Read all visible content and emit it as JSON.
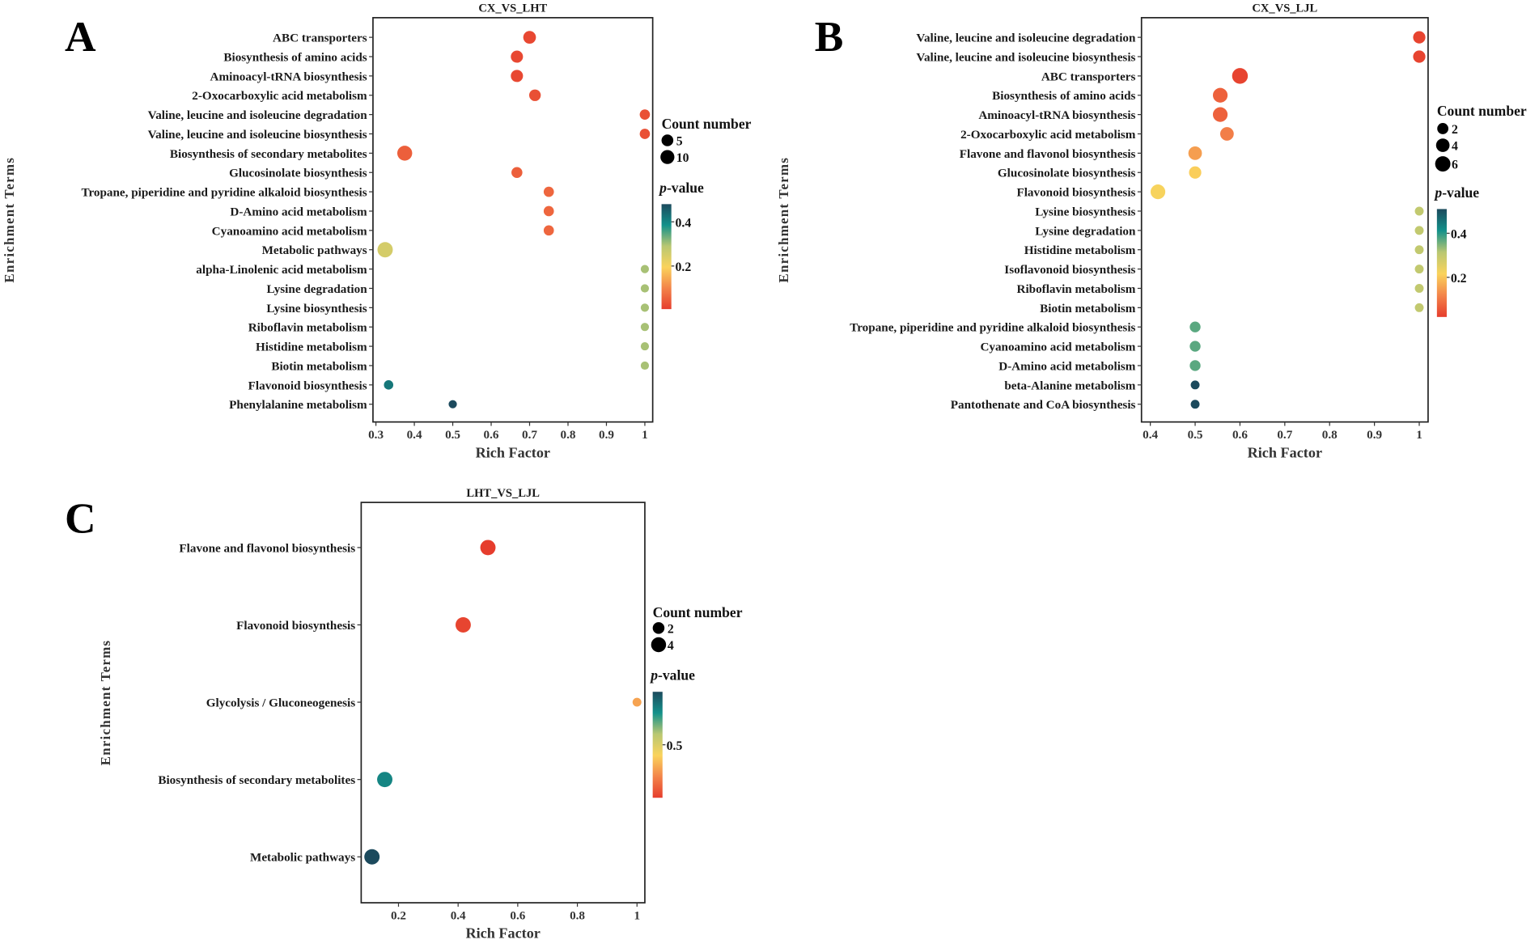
{
  "chart_data": [
    {
      "type": "scatter",
      "panel_label": "A",
      "title": "CX_VS_LHT",
      "xlabel": "Rich Factor",
      "ylabel": "Enrichment Terms",
      "xlim": [
        0.3,
        1.0
      ],
      "xticks": [
        "0.3",
        "0.4",
        "0.5",
        "0.6",
        "0.7",
        "0.8",
        "0.9",
        "1"
      ],
      "xtick_values": [
        0.3,
        0.4,
        0.5,
        0.6,
        0.7,
        0.8,
        0.9,
        1.0
      ],
      "size_legend": {
        "title": "Count number",
        "values": [
          5,
          10
        ]
      },
      "color_legend": {
        "title_italic": "p",
        "title_rest": "-value",
        "range": [
          0.005,
          0.48
        ],
        "ticks": [
          0.2,
          0.4
        ],
        "tick_labels": [
          "0.2",
          "0.4"
        ]
      },
      "points": [
        {
          "term": "ABC transporters",
          "rich_factor": 0.7,
          "count": 7,
          "p_value": 0.02
        },
        {
          "term": "Biosynthesis of amino acids",
          "rich_factor": 0.667,
          "count": 6,
          "p_value": 0.02
        },
        {
          "term": "Aminoacyl-tRNA biosynthesis",
          "rich_factor": 0.667,
          "count": 6,
          "p_value": 0.02
        },
        {
          "term": "2-Oxocarboxylic acid metabolism",
          "rich_factor": 0.714,
          "count": 5,
          "p_value": 0.03
        },
        {
          "term": "Valine, leucine and isoleucine degradation",
          "rich_factor": 1.0,
          "count": 3,
          "p_value": 0.03
        },
        {
          "term": "Valine, leucine and isoleucine biosynthesis",
          "rich_factor": 1.0,
          "count": 3,
          "p_value": 0.03
        },
        {
          "term": "Biosynthesis of secondary metabolites",
          "rich_factor": 0.375,
          "count": 12,
          "p_value": 0.05
        },
        {
          "term": "Glucosinolate biosynthesis",
          "rich_factor": 0.667,
          "count": 4,
          "p_value": 0.05
        },
        {
          "term": "Tropane, piperidine and pyridine alkaloid biosynthesis",
          "rich_factor": 0.75,
          "count": 3,
          "p_value": 0.06
        },
        {
          "term": "D-Amino acid metabolism",
          "rich_factor": 0.75,
          "count": 3,
          "p_value": 0.06
        },
        {
          "term": "Cyanoamino acid metabolism",
          "rich_factor": 0.75,
          "count": 3,
          "p_value": 0.06
        },
        {
          "term": "Metabolic pathways",
          "rich_factor": 0.324,
          "count": 13,
          "p_value": 0.25
        },
        {
          "term": "alpha-Linolenic acid metabolism",
          "rich_factor": 1.0,
          "count": 1,
          "p_value": 0.3
        },
        {
          "term": "Lysine degradation",
          "rich_factor": 1.0,
          "count": 1,
          "p_value": 0.3
        },
        {
          "term": "Lysine biosynthesis",
          "rich_factor": 1.0,
          "count": 1,
          "p_value": 0.3
        },
        {
          "term": "Riboflavin metabolism",
          "rich_factor": 1.0,
          "count": 1,
          "p_value": 0.3
        },
        {
          "term": "Histidine metabolism",
          "rich_factor": 1.0,
          "count": 1,
          "p_value": 0.3
        },
        {
          "term": "Biotin metabolism",
          "rich_factor": 1.0,
          "count": 1,
          "p_value": 0.3
        },
        {
          "term": "Flavonoid biosynthesis",
          "rich_factor": 0.333,
          "count": 2,
          "p_value": 0.42
        },
        {
          "term": "Phenylalanine metabolism",
          "rich_factor": 0.5,
          "count": 1,
          "p_value": 0.48
        }
      ]
    },
    {
      "type": "scatter",
      "panel_label": "B",
      "title": "CX_VS_LJL",
      "xlabel": "Rich Factor",
      "ylabel": "Enrichment Terms",
      "xlim": [
        0.4,
        1.0
      ],
      "xticks": [
        "0.4",
        "0.5",
        "0.6",
        "0.7",
        "0.8",
        "0.9",
        "1"
      ],
      "xtick_values": [
        0.4,
        0.5,
        0.6,
        0.7,
        0.8,
        0.9,
        1.0
      ],
      "size_legend": {
        "title": "Count number",
        "values": [
          2,
          4,
          6
        ]
      },
      "color_legend": {
        "title_italic": "p",
        "title_rest": "-value",
        "range": [
          0.02,
          0.51
        ],
        "ticks": [
          0.2,
          0.4
        ],
        "tick_labels": [
          "0.2",
          "0.4"
        ]
      },
      "points": [
        {
          "term": "Valine, leucine and isoleucine degradation",
          "rich_factor": 1.0,
          "count": 3,
          "p_value": 0.03
        },
        {
          "term": "Valine, leucine and isoleucine biosynthesis",
          "rich_factor": 1.0,
          "count": 3,
          "p_value": 0.03
        },
        {
          "term": "ABC transporters",
          "rich_factor": 0.6,
          "count": 6,
          "p_value": 0.03
        },
        {
          "term": "Biosynthesis of amino acids",
          "rich_factor": 0.556,
          "count": 5,
          "p_value": 0.07
        },
        {
          "term": "Aminoacyl-tRNA biosynthesis",
          "rich_factor": 0.556,
          "count": 5,
          "p_value": 0.07
        },
        {
          "term": "2-Oxocarboxylic acid metabolism",
          "rich_factor": 0.571,
          "count": 4,
          "p_value": 0.11
        },
        {
          "term": "Flavone and flavonol biosynthesis",
          "rich_factor": 0.5,
          "count": 4,
          "p_value": 0.15
        },
        {
          "term": "Glucosinolate biosynthesis",
          "rich_factor": 0.5,
          "count": 3,
          "p_value": 0.21
        },
        {
          "term": "Flavonoid biosynthesis",
          "rich_factor": 0.417,
          "count": 5,
          "p_value": 0.22
        },
        {
          "term": "Lysine biosynthesis",
          "rich_factor": 1.0,
          "count": 1,
          "p_value": 0.3
        },
        {
          "term": "Lysine degradation",
          "rich_factor": 1.0,
          "count": 1,
          "p_value": 0.3
        },
        {
          "term": "Histidine metabolism",
          "rich_factor": 1.0,
          "count": 1,
          "p_value": 0.3
        },
        {
          "term": "Isoflavonoid biosynthesis",
          "rich_factor": 1.0,
          "count": 1,
          "p_value": 0.3
        },
        {
          "term": "Riboflavin metabolism",
          "rich_factor": 1.0,
          "count": 1,
          "p_value": 0.3
        },
        {
          "term": "Biotin metabolism",
          "rich_factor": 1.0,
          "count": 1,
          "p_value": 0.3
        },
        {
          "term": "Tropane, piperidine and pyridine alkaloid biosynthesis",
          "rich_factor": 0.5,
          "count": 2,
          "p_value": 0.37
        },
        {
          "term": "Cyanoamino acid metabolism",
          "rich_factor": 0.5,
          "count": 2,
          "p_value": 0.37
        },
        {
          "term": "D-Amino acid metabolism",
          "rich_factor": 0.5,
          "count": 2,
          "p_value": 0.37
        },
        {
          "term": "beta-Alanine metabolism",
          "rich_factor": 0.5,
          "count": 1,
          "p_value": 0.51
        },
        {
          "term": "Pantothenate and CoA biosynthesis",
          "rich_factor": 0.5,
          "count": 1,
          "p_value": 0.51
        }
      ]
    },
    {
      "type": "scatter",
      "panel_label": "C",
      "title": "LHT_VS_LJL",
      "xlabel": "Rich Factor",
      "ylabel": "Enrichment Terms",
      "xlim": [
        0.08,
        1.0
      ],
      "xticks": [
        "0.2",
        "0.4",
        "0.6",
        "0.8",
        "1"
      ],
      "xtick_values": [
        0.2,
        0.4,
        0.6,
        0.8,
        1.0
      ],
      "size_legend": {
        "title": "Count number",
        "values": [
          2,
          4
        ]
      },
      "color_legend": {
        "title_italic": "p",
        "title_rest": "-value",
        "range": [
          0.05,
          0.95
        ],
        "ticks": [
          0.5
        ],
        "tick_labels": [
          "0.5"
        ]
      },
      "points": [
        {
          "term": "Flavone and flavonol biosynthesis",
          "rich_factor": 0.5,
          "count": 4,
          "p_value": 0.05
        },
        {
          "term": "Flavonoid biosynthesis",
          "rich_factor": 0.417,
          "count": 4,
          "p_value": 0.07
        },
        {
          "term": "Glycolysis / Gluconeogenesis",
          "rich_factor": 1.0,
          "count": 1,
          "p_value": 0.3
        },
        {
          "term": "Biosynthesis of secondary metabolites",
          "rich_factor": 0.154,
          "count": 4,
          "p_value": 0.8
        },
        {
          "term": "Metabolic pathways",
          "rich_factor": 0.111,
          "count": 4,
          "p_value": 0.95
        }
      ]
    }
  ],
  "colors": {
    "scale": [
      "#e63d2d",
      "#f3844a",
      "#fad35c",
      "#b9c772",
      "#13918a",
      "#1c4a5d"
    ]
  }
}
